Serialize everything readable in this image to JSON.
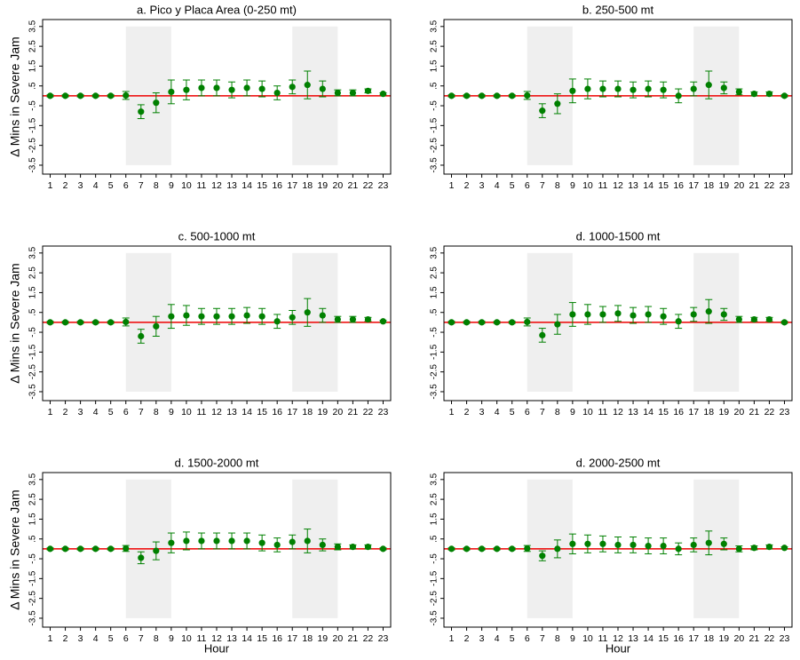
{
  "chart_data": [
    {
      "type": "errorbar",
      "title": "a. Pico y Placa Area (0-250 mt)",
      "ylabel": "Δ Mins in Severe Jam",
      "x": [
        1,
        2,
        3,
        4,
        5,
        6,
        7,
        8,
        9,
        10,
        11,
        12,
        13,
        14,
        15,
        16,
        17,
        18,
        19,
        20,
        21,
        22,
        23
      ],
      "series": [
        {
          "color": "#008000",
          "values": [
            0,
            0,
            0,
            0,
            0,
            0.02,
            -0.8,
            -0.35,
            0.2,
            0.3,
            0.4,
            0.4,
            0.3,
            0.4,
            0.35,
            0.15,
            0.45,
            0.55,
            0.35,
            0.15,
            0.15,
            0.25,
            0.1
          ],
          "errors": [
            0.05,
            0.05,
            0.05,
            0.05,
            0.05,
            0.2,
            0.35,
            0.5,
            0.6,
            0.5,
            0.4,
            0.4,
            0.4,
            0.4,
            0.4,
            0.35,
            0.35,
            0.7,
            0.4,
            0.15,
            0.15,
            0.1,
            0.05
          ]
        }
      ],
      "xlim": [
        0.5,
        23.5
      ],
      "ylim": [
        -3.95,
        3.85
      ],
      "xticks": [
        1,
        2,
        3,
        4,
        5,
        6,
        7,
        8,
        9,
        10,
        11,
        12,
        13,
        14,
        15,
        16,
        17,
        18,
        19,
        20,
        21,
        22,
        23
      ],
      "yticks": [
        {
          "value": -3.5,
          "label": "-3.5"
        },
        {
          "value": -2.5,
          "label": "-2.5"
        },
        {
          "value": -1.5,
          "label": "-1.5"
        },
        {
          "value": -0.5,
          "label": "-.5"
        },
        {
          "value": 0.5,
          "label": ".5"
        },
        {
          "value": 1.5,
          "label": "1.5"
        },
        {
          "value": 2.5,
          "label": "2.5"
        },
        {
          "value": 3.5,
          "label": "3.5"
        }
      ],
      "hline": 0,
      "hline_color": "#ee0000",
      "shaded_x": [
        [
          6,
          9
        ],
        [
          17,
          20
        ]
      ],
      "shaded_y": [
        -3.5,
        3.5
      ],
      "shade_color": "#efefef"
    },
    {
      "type": "errorbar",
      "title": "b. 250-500 mt",
      "x": [
        1,
        2,
        3,
        4,
        5,
        6,
        7,
        8,
        9,
        10,
        11,
        12,
        13,
        14,
        15,
        16,
        17,
        18,
        19,
        20,
        21,
        22,
        23
      ],
      "series": [
        {
          "color": "#008000",
          "values": [
            0,
            0,
            0,
            0,
            0,
            0.02,
            -0.75,
            -0.4,
            0.25,
            0.35,
            0.35,
            0.35,
            0.3,
            0.35,
            0.3,
            0,
            0.35,
            0.55,
            0.4,
            0.2,
            0.1,
            0.1,
            0
          ],
          "errors": [
            0.05,
            0.05,
            0.05,
            0.05,
            0.05,
            0.2,
            0.35,
            0.5,
            0.6,
            0.5,
            0.4,
            0.4,
            0.4,
            0.4,
            0.4,
            0.35,
            0.35,
            0.7,
            0.3,
            0.15,
            0.1,
            0.1,
            0.05
          ]
        }
      ],
      "xlim": [
        0.5,
        23.5
      ],
      "ylim": [
        -3.95,
        3.85
      ],
      "xticks": [
        1,
        2,
        3,
        4,
        5,
        6,
        7,
        8,
        9,
        10,
        11,
        12,
        13,
        14,
        15,
        16,
        17,
        18,
        19,
        20,
        21,
        22,
        23
      ],
      "yticks": [
        {
          "value": -3.5,
          "label": "-3.5"
        },
        {
          "value": -2.5,
          "label": "-2.5"
        },
        {
          "value": -1.5,
          "label": "-1.5"
        },
        {
          "value": -0.5,
          "label": "-.5"
        },
        {
          "value": 0.5,
          "label": ".5"
        },
        {
          "value": 1.5,
          "label": "1.5"
        },
        {
          "value": 2.5,
          "label": "2.5"
        },
        {
          "value": 3.5,
          "label": "3.5"
        }
      ],
      "hline": 0,
      "hline_color": "#ee0000",
      "shaded_x": [
        [
          6,
          9
        ],
        [
          17,
          20
        ]
      ],
      "shaded_y": [
        -3.5,
        3.5
      ],
      "shade_color": "#efefef"
    },
    {
      "type": "errorbar",
      "title": "c. 500-1000 mt",
      "ylabel": "Δ Mins in Severe Jam",
      "x": [
        1,
        2,
        3,
        4,
        5,
        6,
        7,
        8,
        9,
        10,
        11,
        12,
        13,
        14,
        15,
        16,
        17,
        18,
        19,
        20,
        21,
        22,
        23
      ],
      "series": [
        {
          "color": "#008000",
          "values": [
            0,
            0,
            0,
            0,
            0,
            0.02,
            -0.7,
            -0.2,
            0.3,
            0.35,
            0.3,
            0.3,
            0.3,
            0.35,
            0.3,
            0.05,
            0.25,
            0.5,
            0.35,
            0.15,
            0.15,
            0.15,
            0.05
          ],
          "errors": [
            0.05,
            0.05,
            0.05,
            0.05,
            0.05,
            0.2,
            0.35,
            0.5,
            0.6,
            0.5,
            0.4,
            0.4,
            0.4,
            0.4,
            0.4,
            0.35,
            0.35,
            0.7,
            0.35,
            0.15,
            0.15,
            0.1,
            0.05
          ]
        }
      ],
      "xlim": [
        0.5,
        23.5
      ],
      "ylim": [
        -3.95,
        3.85
      ],
      "xticks": [
        1,
        2,
        3,
        4,
        5,
        6,
        7,
        8,
        9,
        10,
        11,
        12,
        13,
        14,
        15,
        16,
        17,
        18,
        19,
        20,
        21,
        22,
        23
      ],
      "yticks": [
        {
          "value": -3.5,
          "label": "-3.5"
        },
        {
          "value": -2.5,
          "label": "-2.5"
        },
        {
          "value": -1.5,
          "label": "-1.5"
        },
        {
          "value": -0.5,
          "label": "-.5"
        },
        {
          "value": 0.5,
          "label": ".5"
        },
        {
          "value": 1.5,
          "label": "1.5"
        },
        {
          "value": 2.5,
          "label": "2.5"
        },
        {
          "value": 3.5,
          "label": "3.5"
        }
      ],
      "hline": 0,
      "hline_color": "#ee0000",
      "shaded_x": [
        [
          6,
          9
        ],
        [
          17,
          20
        ]
      ],
      "shaded_y": [
        -3.5,
        3.5
      ],
      "shade_color": "#efefef"
    },
    {
      "type": "errorbar",
      "title": "d. 1000-1500 mt",
      "x": [
        1,
        2,
        3,
        4,
        5,
        6,
        7,
        8,
        9,
        10,
        11,
        12,
        13,
        14,
        15,
        16,
        17,
        18,
        19,
        20,
        21,
        22,
        23
      ],
      "series": [
        {
          "color": "#008000",
          "values": [
            0,
            0,
            0,
            0,
            0,
            0.02,
            -0.65,
            -0.1,
            0.4,
            0.4,
            0.4,
            0.45,
            0.35,
            0.4,
            0.3,
            0.05,
            0.4,
            0.55,
            0.4,
            0.15,
            0.15,
            0.15,
            0
          ],
          "errors": [
            0.05,
            0.05,
            0.05,
            0.05,
            0.05,
            0.2,
            0.35,
            0.5,
            0.6,
            0.5,
            0.4,
            0.4,
            0.4,
            0.4,
            0.4,
            0.35,
            0.35,
            0.6,
            0.3,
            0.15,
            0.1,
            0.1,
            0.05
          ]
        }
      ],
      "xlim": [
        0.5,
        23.5
      ],
      "ylim": [
        -3.95,
        3.85
      ],
      "xticks": [
        1,
        2,
        3,
        4,
        5,
        6,
        7,
        8,
        9,
        10,
        11,
        12,
        13,
        14,
        15,
        16,
        17,
        18,
        19,
        20,
        21,
        22,
        23
      ],
      "yticks": [
        {
          "value": -3.5,
          "label": "-3.5"
        },
        {
          "value": -2.5,
          "label": "-2.5"
        },
        {
          "value": -1.5,
          "label": "-1.5"
        },
        {
          "value": -0.5,
          "label": "-.5"
        },
        {
          "value": 0.5,
          "label": ".5"
        },
        {
          "value": 1.5,
          "label": "1.5"
        },
        {
          "value": 2.5,
          "label": "2.5"
        },
        {
          "value": 3.5,
          "label": "3.5"
        }
      ],
      "hline": 0,
      "hline_color": "#ee0000",
      "shaded_x": [
        [
          6,
          9
        ],
        [
          17,
          20
        ]
      ],
      "shaded_y": [
        -3.5,
        3.5
      ],
      "shade_color": "#efefef"
    },
    {
      "type": "errorbar",
      "title": "d. 1500-2000 mt",
      "ylabel": "Δ Mins in Severe Jam",
      "xlabel": "Hour",
      "x": [
        1,
        2,
        3,
        4,
        5,
        6,
        7,
        8,
        9,
        10,
        11,
        12,
        13,
        14,
        15,
        16,
        17,
        18,
        19,
        20,
        21,
        22,
        23
      ],
      "series": [
        {
          "color": "#008000",
          "values": [
            0,
            0,
            0,
            0,
            0,
            0.02,
            -0.45,
            -0.1,
            0.3,
            0.4,
            0.4,
            0.4,
            0.4,
            0.4,
            0.3,
            0.2,
            0.35,
            0.4,
            0.2,
            0.1,
            0.1,
            0.1,
            0
          ],
          "errors": [
            0.05,
            0.05,
            0.05,
            0.05,
            0.05,
            0.15,
            0.3,
            0.45,
            0.5,
            0.45,
            0.4,
            0.4,
            0.4,
            0.4,
            0.4,
            0.35,
            0.35,
            0.6,
            0.3,
            0.15,
            0.1,
            0.1,
            0.05
          ]
        }
      ],
      "xlim": [
        0.5,
        23.5
      ],
      "ylim": [
        -3.95,
        3.85
      ],
      "xticks": [
        1,
        2,
        3,
        4,
        5,
        6,
        7,
        8,
        9,
        10,
        11,
        12,
        13,
        14,
        15,
        16,
        17,
        18,
        19,
        20,
        21,
        22,
        23
      ],
      "yticks": [
        {
          "value": -3.5,
          "label": "-3.5"
        },
        {
          "value": -2.5,
          "label": "-2.5"
        },
        {
          "value": -1.5,
          "label": "-1.5"
        },
        {
          "value": -0.5,
          "label": "-.5"
        },
        {
          "value": 0.5,
          "label": ".5"
        },
        {
          "value": 1.5,
          "label": "1.5"
        },
        {
          "value": 2.5,
          "label": "2.5"
        },
        {
          "value": 3.5,
          "label": "3.5"
        }
      ],
      "hline": 0,
      "hline_color": "#ee0000",
      "shaded_x": [
        [
          6,
          9
        ],
        [
          17,
          20
        ]
      ],
      "shaded_y": [
        -3.5,
        3.5
      ],
      "shade_color": "#efefef"
    },
    {
      "type": "errorbar",
      "title": "d. 2000-2500 mt",
      "xlabel": "Hour",
      "x": [
        1,
        2,
        3,
        4,
        5,
        6,
        7,
        8,
        9,
        10,
        11,
        12,
        13,
        14,
        15,
        16,
        17,
        18,
        19,
        20,
        21,
        22,
        23
      ],
      "series": [
        {
          "color": "#008000",
          "values": [
            0,
            0,
            0,
            0,
            0,
            0.02,
            -0.35,
            0,
            0.25,
            0.25,
            0.25,
            0.2,
            0.2,
            0.15,
            0.15,
            0,
            0.2,
            0.3,
            0.25,
            0,
            0.05,
            0.1,
            0.05
          ],
          "errors": [
            0.05,
            0.05,
            0.05,
            0.05,
            0.05,
            0.15,
            0.25,
            0.45,
            0.5,
            0.45,
            0.4,
            0.4,
            0.4,
            0.4,
            0.4,
            0.3,
            0.35,
            0.6,
            0.3,
            0.15,
            0.1,
            0.1,
            0.05
          ]
        }
      ],
      "xlim": [
        0.5,
        23.5
      ],
      "ylim": [
        -3.95,
        3.85
      ],
      "xticks": [
        1,
        2,
        3,
        4,
        5,
        6,
        7,
        8,
        9,
        10,
        11,
        12,
        13,
        14,
        15,
        16,
        17,
        18,
        19,
        20,
        21,
        22,
        23
      ],
      "yticks": [
        {
          "value": -3.5,
          "label": "-3.5"
        },
        {
          "value": -2.5,
          "label": "-2.5"
        },
        {
          "value": -1.5,
          "label": "-1.5"
        },
        {
          "value": -0.5,
          "label": "-.5"
        },
        {
          "value": 0.5,
          "label": ".5"
        },
        {
          "value": 1.5,
          "label": "1.5"
        },
        {
          "value": 2.5,
          "label": "2.5"
        },
        {
          "value": 3.5,
          "label": "3.5"
        }
      ],
      "hline": 0,
      "hline_color": "#ee0000",
      "shaded_x": [
        [
          6,
          9
        ],
        [
          17,
          20
        ]
      ],
      "shaded_y": [
        -3.5,
        3.5
      ],
      "shade_color": "#efefef"
    }
  ]
}
